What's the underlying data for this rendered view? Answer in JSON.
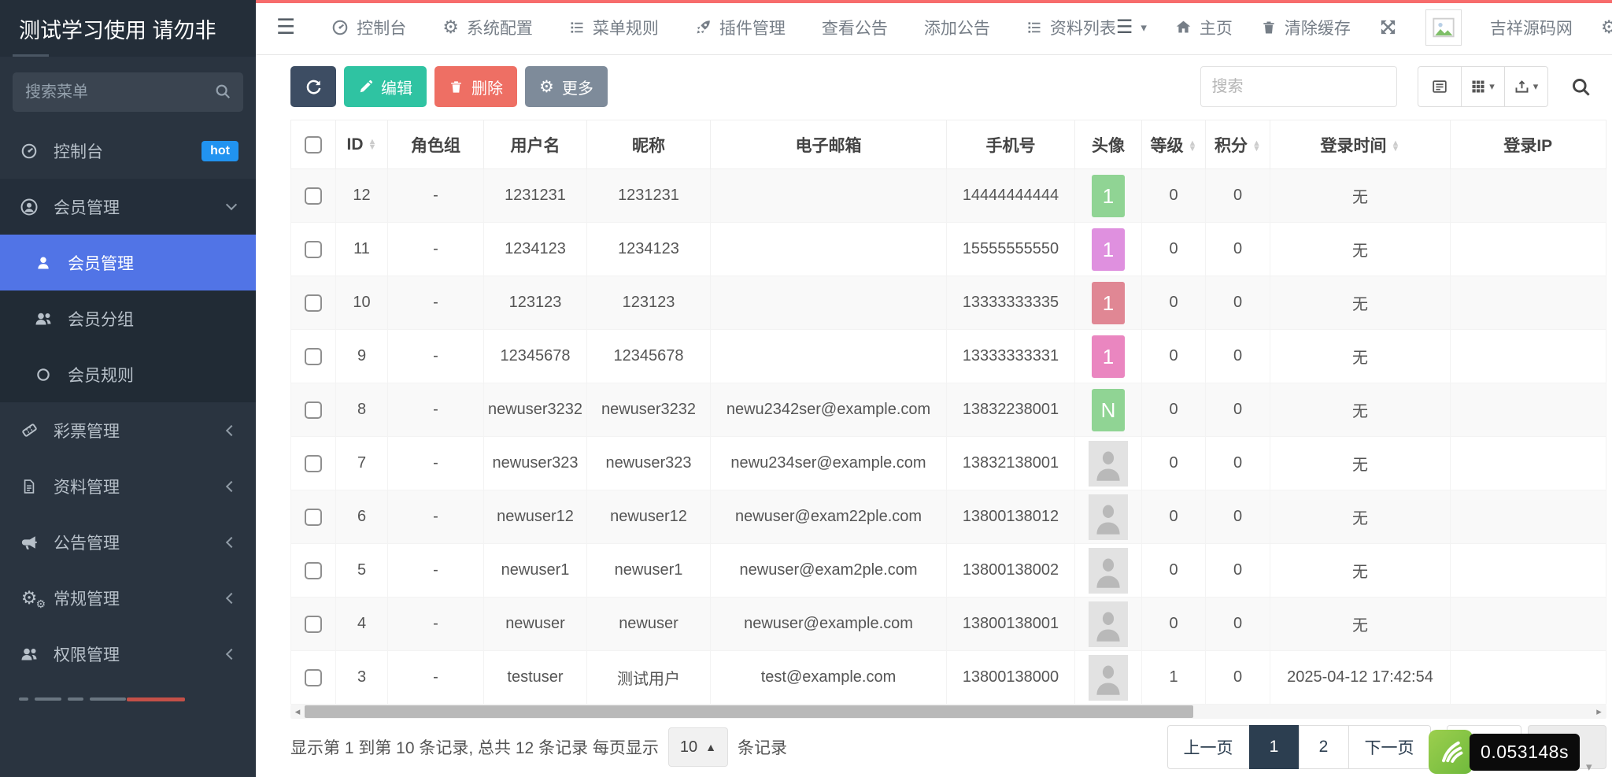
{
  "sidebar": {
    "title": "测试学习使用 请勿非",
    "search_placeholder": "搜索菜单",
    "items": [
      {
        "name": "console",
        "label": "控制台",
        "icon": "dashboard-icon",
        "badge": "hot"
      },
      {
        "name": "member-manage-parent",
        "label": "会员管理",
        "icon": "user-circle-icon",
        "state": "open",
        "chevron": "down"
      },
      {
        "name": "member-manage",
        "label": "会员管理",
        "icon": "user-icon",
        "active": true,
        "sub": true
      },
      {
        "name": "member-group",
        "label": "会员分组",
        "icon": "users-icon",
        "sub": true
      },
      {
        "name": "member-rule",
        "label": "会员规则",
        "icon": "circle-icon",
        "sub": true
      },
      {
        "name": "lottery-manage",
        "label": "彩票管理",
        "icon": "ticket-icon",
        "chevron": "left"
      },
      {
        "name": "data-manage",
        "label": "资料管理",
        "icon": "file-icon",
        "chevron": "left"
      },
      {
        "name": "notice-manage",
        "label": "公告管理",
        "icon": "bullhorn-icon",
        "chevron": "left"
      },
      {
        "name": "general-manage",
        "label": "常规管理",
        "icon": "cogs-icon",
        "chevron": "left"
      },
      {
        "name": "auth-manage",
        "label": "权限管理",
        "icon": "users-icon",
        "chevron": "left"
      }
    ]
  },
  "topnav": {
    "items": [
      {
        "name": "console",
        "label": "控制台",
        "icon": "dashboard-icon"
      },
      {
        "name": "system-config",
        "label": "系统配置",
        "icon": "gear-icon"
      },
      {
        "name": "menu-rule",
        "label": "菜单规则",
        "icon": "list-icon"
      },
      {
        "name": "plugin-manage",
        "label": "插件管理",
        "icon": "rocket-icon"
      },
      {
        "name": "view-notice",
        "label": "查看公告",
        "icon": null
      },
      {
        "name": "add-notice",
        "label": "添加公告",
        "icon": null
      },
      {
        "name": "data-list",
        "label": "资料列表",
        "icon": "list-icon"
      }
    ],
    "home_label": "主页",
    "clear_cache_label": "清除缓存",
    "username": "吉祥源码网"
  },
  "toolbar": {
    "edit_label": "编辑",
    "delete_label": "删除",
    "more_label": "更多",
    "search_placeholder": "搜索"
  },
  "table": {
    "columns": [
      {
        "key": "check",
        "label": "",
        "sortable": false
      },
      {
        "key": "id",
        "label": "ID",
        "sortable": true
      },
      {
        "key": "group",
        "label": "角色组",
        "sortable": false
      },
      {
        "key": "username",
        "label": "用户名",
        "sortable": false
      },
      {
        "key": "nickname",
        "label": "昵称",
        "sortable": false
      },
      {
        "key": "email",
        "label": "电子邮箱",
        "sortable": false
      },
      {
        "key": "phone",
        "label": "手机号",
        "sortable": false
      },
      {
        "key": "avatar",
        "label": "头像",
        "sortable": false
      },
      {
        "key": "level",
        "label": "等级",
        "sortable": true
      },
      {
        "key": "score",
        "label": "积分",
        "sortable": true
      },
      {
        "key": "login_time",
        "label": "登录时间",
        "sortable": true
      },
      {
        "key": "login_ip",
        "label": "登录IP",
        "sortable": false
      }
    ],
    "rows": [
      {
        "id": "12",
        "group": "-",
        "username": "1231231",
        "nickname": "1231231",
        "email": "",
        "phone": "14444444444",
        "avatar": {
          "type": "letter",
          "text": "1",
          "color": "#90d494"
        },
        "level": "0",
        "score": "0",
        "login_time": "无",
        "login_ip": ""
      },
      {
        "id": "11",
        "group": "-",
        "username": "1234123",
        "nickname": "1234123",
        "email": "",
        "phone": "15555555550",
        "avatar": {
          "type": "letter",
          "text": "1",
          "color": "#df90df"
        },
        "level": "0",
        "score": "0",
        "login_time": "无",
        "login_ip": ""
      },
      {
        "id": "10",
        "group": "-",
        "username": "123123",
        "nickname": "123123",
        "email": "",
        "phone": "13333333335",
        "avatar": {
          "type": "letter",
          "text": "1",
          "color": "#e08794"
        },
        "level": "0",
        "score": "0",
        "login_time": "无",
        "login_ip": ""
      },
      {
        "id": "9",
        "group": "-",
        "username": "12345678",
        "nickname": "12345678",
        "email": "",
        "phone": "13333333331",
        "avatar": {
          "type": "letter",
          "text": "1",
          "color": "#ea86c0"
        },
        "level": "0",
        "score": "0",
        "login_time": "无",
        "login_ip": ""
      },
      {
        "id": "8",
        "group": "-",
        "username": "newuser3232",
        "nickname": "newuser3232",
        "email": "newu2342ser@example.com",
        "phone": "13832238001",
        "avatar": {
          "type": "letter",
          "text": "N",
          "color": "#90d494"
        },
        "level": "0",
        "score": "0",
        "login_time": "无",
        "login_ip": ""
      },
      {
        "id": "7",
        "group": "-",
        "username": "newuser323",
        "nickname": "newuser323",
        "email": "newu234ser@example.com",
        "phone": "13832138001",
        "avatar": {
          "type": "placeholder"
        },
        "level": "0",
        "score": "0",
        "login_time": "无",
        "login_ip": ""
      },
      {
        "id": "6",
        "group": "-",
        "username": "newuser12",
        "nickname": "newuser12",
        "email": "newuser@exam22ple.com",
        "phone": "13800138012",
        "avatar": {
          "type": "placeholder"
        },
        "level": "0",
        "score": "0",
        "login_time": "无",
        "login_ip": ""
      },
      {
        "id": "5",
        "group": "-",
        "username": "newuser1",
        "nickname": "newuser1",
        "email": "newuser@exam2ple.com",
        "phone": "13800138002",
        "avatar": {
          "type": "placeholder"
        },
        "level": "0",
        "score": "0",
        "login_time": "无",
        "login_ip": ""
      },
      {
        "id": "4",
        "group": "-",
        "username": "newuser",
        "nickname": "newuser",
        "email": "newuser@example.com",
        "phone": "13800138001",
        "avatar": {
          "type": "placeholder"
        },
        "level": "0",
        "score": "0",
        "login_time": "无",
        "login_ip": ""
      },
      {
        "id": "3",
        "group": "-",
        "username": "testuser",
        "nickname": "测试用户",
        "email": "test@example.com",
        "phone": "13800138000",
        "avatar": {
          "type": "placeholder"
        },
        "level": "1",
        "score": "0",
        "login_time": "2025-04-12 17:42:54",
        "login_ip": ""
      }
    ]
  },
  "footer": {
    "info_prefix": "显示第 1 到第 10 条记录, 总共 12 条记录 每页显示",
    "page_size": "10",
    "info_suffix": "条记录"
  },
  "pagination": {
    "prev_label": "上一页",
    "pages": [
      "1",
      "2"
    ],
    "active_page": "1",
    "next_label": "下一页"
  },
  "timer": {
    "value": "0.053148s"
  },
  "colors": {
    "sidebar_bg": "#2a3440",
    "active_menu": "#5174e6",
    "hot_badge": "#2193f0",
    "btn_edit": "#2fc3a2",
    "btn_delete": "#ee6f64",
    "btn_more": "#7e8b9a",
    "btn_refresh": "#3d4d63",
    "pagination_active": "#2c3e50",
    "progress_line": "#f76c6c"
  }
}
